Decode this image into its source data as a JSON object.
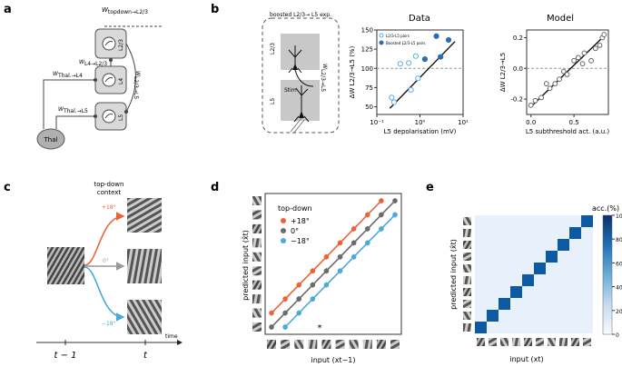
{
  "figure": {
    "panels": {
      "a": {
        "label": "a",
        "labels": {
          "topdown": "W",
          "topdown_sub": "topdown→L2/3",
          "l4l23": "W",
          "l4l23_sub": "L4→L2/3",
          "thal_l4": "W",
          "thal_l4_sub": "Thal.→L4",
          "thal_l5": "W",
          "thal_l5_sub": "Thal.→L5",
          "l23l5": "W",
          "l23l5_sub": "L2/3→L5",
          "layer1": "L2/3",
          "layer2": "L4",
          "layer3": "L5",
          "thal": "Thal"
        }
      },
      "b": {
        "label": "b",
        "schematic_title": "boosted L2/3→ L5 exp.",
        "layer_top": "L2/3",
        "layer_bottom": "L5",
        "stim": "Stim",
        "wlabel": "W",
        "wlabel_sub": "L2/3→L5",
        "data_title": "Data",
        "model_title": "Model"
      },
      "c": {
        "label": "c",
        "context_title": "top-down",
        "context_title2": "context",
        "angle_pos": "+18°",
        "angle_zero": "0°",
        "angle_neg": "−18°",
        "t_prev": "t − 1",
        "t_now": "t",
        "time_label": "time"
      },
      "d": {
        "label": "d",
        "legend_title": "top-down",
        "legend": [
          "+18°",
          "0°",
          "−18°"
        ],
        "ylabel": "predicted input (x̂t)",
        "xlabel": "input (xt−1)",
        "star": "*"
      },
      "e": {
        "label": "e",
        "colorbar_title": "acc.(%)",
        "colorbar_ticks": [
          "100",
          "80",
          "60",
          "40",
          "20",
          "0"
        ],
        "ylabel": "predicted input (x̂t)",
        "xlabel": "input (xt)"
      }
    },
    "colors": {
      "orange": "#e8643c",
      "grey": "#6b6b6b",
      "blue": "#4aaad8",
      "dark_blue": "#2c6fb0",
      "light_blue": "#5bb0e3"
    }
  },
  "chart_data": [
    {
      "id": "b-data",
      "type": "scatter",
      "title": "Data",
      "xlabel": "L5 depolarisation (mV)",
      "ylabel": "ΔW L2/3→L5 (%)",
      "xscale": "log",
      "xlim": [
        0.1,
        10
      ],
      "ylim": [
        40,
        150
      ],
      "xticks": [
        "10⁻¹",
        "10⁰",
        "10¹"
      ],
      "yticks": [
        50,
        75,
        100,
        125,
        150
      ],
      "legend": [
        "L2/3-L5 pairs",
        "Boosted L2/3-L5 pairs"
      ],
      "series": [
        {
          "name": "L2/3-L5 pairs",
          "filled": false,
          "points": [
            [
              0.22,
              62
            ],
            [
              0.25,
              56
            ],
            [
              0.35,
              106
            ],
            [
              0.55,
              107
            ],
            [
              0.62,
              72
            ],
            [
              0.8,
              116
            ],
            [
              0.9,
              87
            ]
          ]
        },
        {
          "name": "Boosted L2/3-L5 pairs",
          "filled": true,
          "points": [
            [
              1.3,
              112
            ],
            [
              2.4,
              142
            ],
            [
              3.0,
              115
            ],
            [
              4.6,
              137
            ]
          ]
        }
      ],
      "fit": [
        [
          0.2,
          48
        ],
        [
          6.5,
          135
        ]
      ],
      "hline": 100
    },
    {
      "id": "b-model",
      "type": "scatter",
      "title": "Model",
      "xlabel": "L5 subthreshold act. (a.u.)",
      "ylabel": "ΔW L2/3→L5",
      "xlim": [
        -0.05,
        0.9
      ],
      "ylim": [
        -0.3,
        0.25
      ],
      "xticks": [
        0.0,
        0.5
      ],
      "yticks": [
        -0.2,
        0.0,
        0.2
      ],
      "points": [
        [
          0.0,
          -0.24
        ],
        [
          0.05,
          -0.21
        ],
        [
          0.12,
          -0.19
        ],
        [
          0.18,
          -0.1
        ],
        [
          0.22,
          -0.13
        ],
        [
          0.28,
          -0.1
        ],
        [
          0.33,
          -0.07
        ],
        [
          0.38,
          -0.02
        ],
        [
          0.42,
          -0.04
        ],
        [
          0.5,
          0.05
        ],
        [
          0.55,
          0.07
        ],
        [
          0.6,
          0.03
        ],
        [
          0.62,
          0.1
        ],
        [
          0.7,
          0.05
        ],
        [
          0.75,
          0.13
        ],
        [
          0.8,
          0.15
        ],
        [
          0.83,
          0.2
        ],
        [
          0.85,
          0.22
        ]
      ],
      "fit": [
        [
          0.0,
          -0.25
        ],
        [
          0.85,
          0.21
        ]
      ],
      "hline": 0.0
    },
    {
      "id": "d",
      "type": "line",
      "xlabel": "input (xt−1)",
      "ylabel": "predicted input (x̂t)",
      "x": [
        0,
        1,
        2,
        3,
        4,
        5,
        6,
        7,
        8,
        9
      ],
      "series": [
        {
          "name": "+18°",
          "values": [
            1,
            2,
            3,
            4,
            5,
            6,
            7,
            8,
            9,
            null
          ]
        },
        {
          "name": "0°",
          "values": [
            0,
            1,
            2,
            3,
            4,
            5,
            6,
            7,
            8,
            9
          ]
        },
        {
          "name": "−18°",
          "values": [
            null,
            0,
            1,
            2,
            3,
            4,
            5,
            6,
            7,
            8
          ]
        }
      ]
    },
    {
      "id": "e",
      "type": "heatmap",
      "xlabel": "input (xt)",
      "ylabel": "predicted input (x̂t)",
      "size": 10,
      "diagonal_value": 100,
      "off_diagonal_value": 3,
      "colorbar_range": [
        0,
        100
      ]
    }
  ]
}
